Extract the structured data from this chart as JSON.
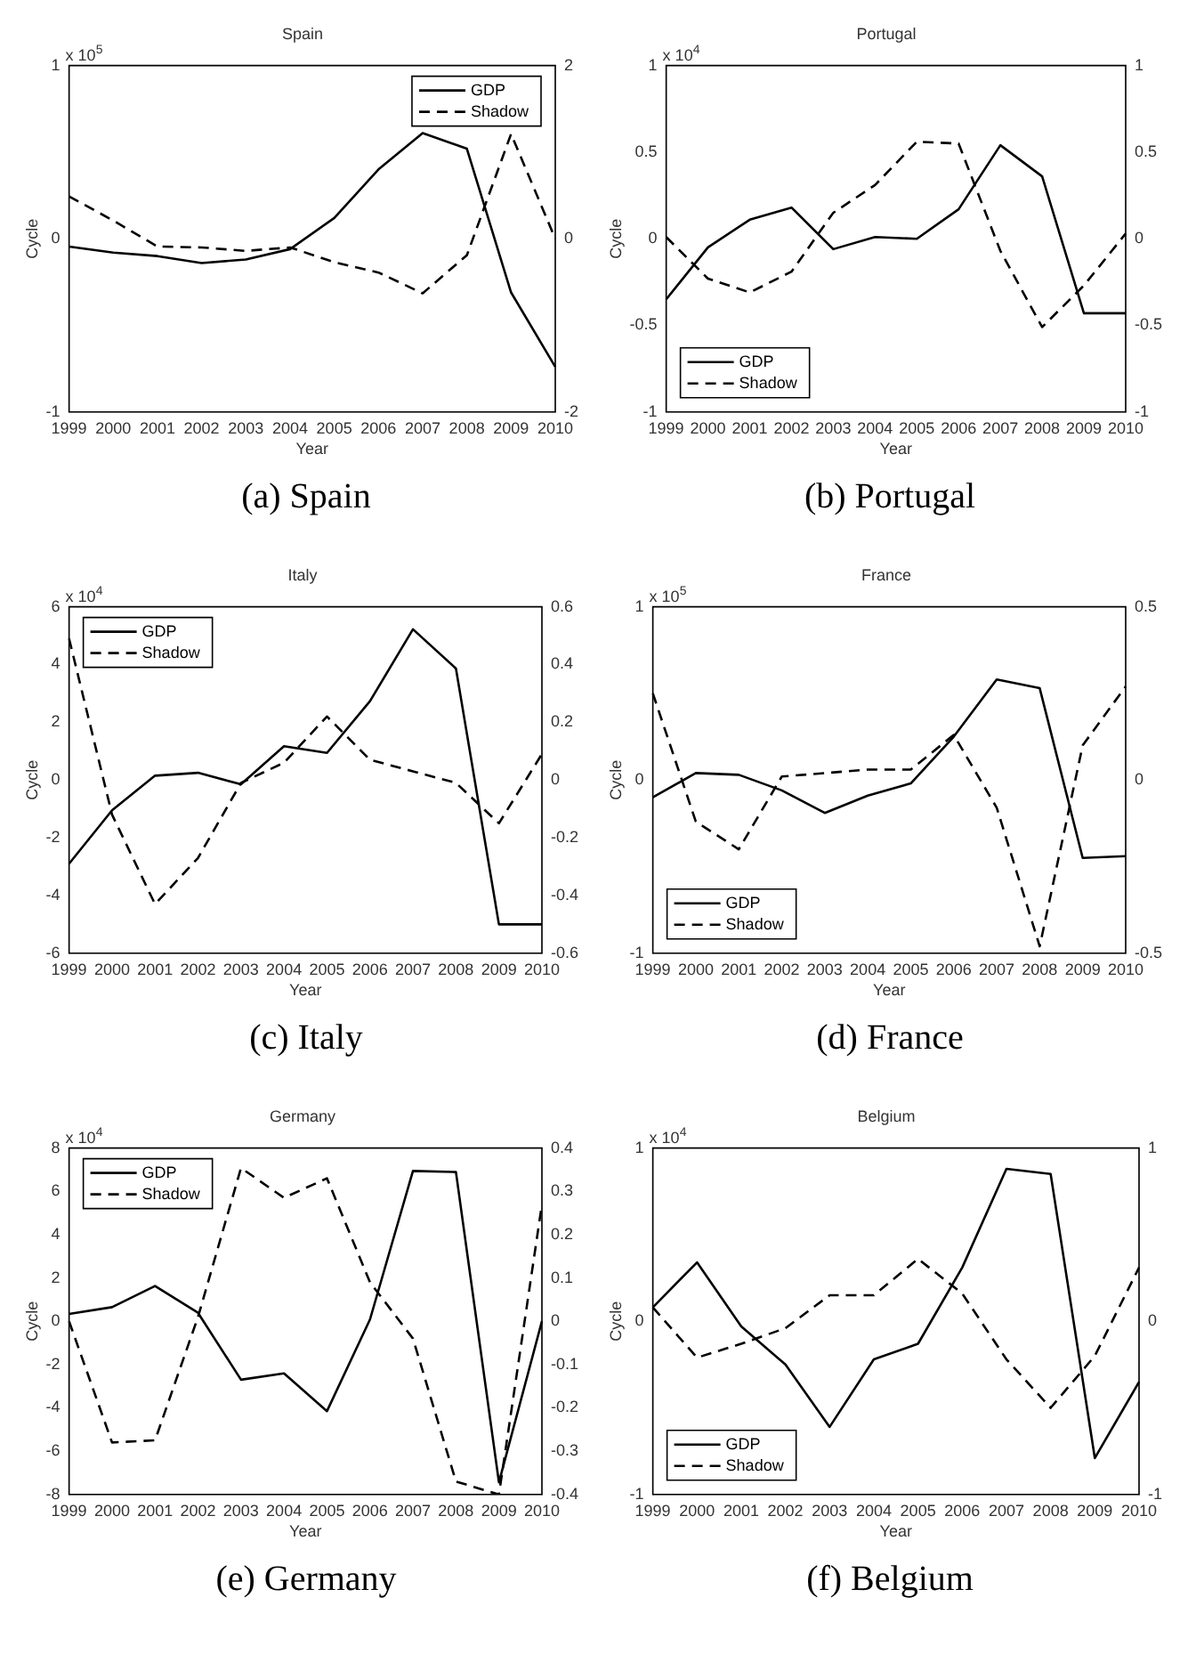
{
  "chart_data": [
    {
      "type": "line",
      "title": "Spain",
      "xlabel": "Year",
      "ylabel": "Cycle",
      "categories": [
        "1999",
        "2000",
        "2001",
        "2002",
        "2003",
        "2004",
        "2005",
        "2006",
        "2007",
        "2008",
        "2009",
        "2010"
      ],
      "ylim": [
        -1,
        1
      ],
      "yticks": [
        -1,
        0,
        1
      ],
      "y2lim": [
        -2,
        2
      ],
      "y2ticks": [
        -2,
        0,
        2
      ],
      "legend": "top right",
      "grid": false,
      "annotations": [
        "x 10$^{5}$",
        "(a) Spain"
      ],
      "series": [
        {
          "name": "GDP",
          "color": "#000000",
          "line_style": "solid",
          "values": [
            -0.045,
            -0.08,
            -0.1,
            -0.14,
            -0.12,
            -0.06,
            0.12,
            0.4,
            0.61,
            0.52,
            -0.31,
            -0.74
          ]
        },
        {
          "name": "Shadow",
          "color": "#000000",
          "line_style": "dashed",
          "axis": "y2",
          "values": [
            0.49,
            0.21,
            -0.09,
            -0.1,
            -0.14,
            -0.1,
            -0.27,
            -0.39,
            -0.63,
            -0.19,
            1.21,
            0
          ]
        }
      ]
    },
    {
      "type": "line",
      "title": "Portugal",
      "xlabel": "Year",
      "ylabel": "Cycle",
      "categories": [
        "1999",
        "2000",
        "2001",
        "2002",
        "2003",
        "2004",
        "2005",
        "2006",
        "2007",
        "2008",
        "2009",
        "2010"
      ],
      "ylim": [
        -1,
        1
      ],
      "yticks": [
        -1,
        -0.5,
        0,
        0.5,
        1
      ],
      "y2lim": [
        -1,
        1
      ],
      "y2ticks": [
        -1,
        -0.5,
        0,
        0.5,
        1
      ],
      "legend": "bottom left",
      "grid": false,
      "annotations": [
        "x 10$^{4}$",
        "(b) Portugal"
      ],
      "series": [
        {
          "name": "GDP",
          "color": "#000000",
          "line_style": "solid",
          "values": [
            -0.35,
            -0.05,
            0.11,
            0.18,
            -0.06,
            0.01,
            0,
            0.17,
            0.54,
            0.36,
            -0.43,
            -0.43
          ]
        },
        {
          "name": "Shadow",
          "color": "#000000",
          "line_style": "dashed",
          "axis": "y2",
          "values": [
            0.01,
            -0.23,
            -0.31,
            -0.19,
            0.15,
            0.31,
            0.56,
            0.55,
            -0.07,
            -0.51,
            -0.27,
            0.03
          ]
        }
      ]
    },
    {
      "type": "line",
      "title": "Italy",
      "xlabel": "Year",
      "ylabel": "Cycle",
      "categories": [
        "1999",
        "2000",
        "2001",
        "2002",
        "2003",
        "2004",
        "2005",
        "2006",
        "2007",
        "2008",
        "2009",
        "2010"
      ],
      "ylim": [
        -6,
        6
      ],
      "yticks": [
        -6,
        -4,
        -2,
        0,
        2,
        4,
        6
      ],
      "y2lim": [
        -0.6,
        0.6
      ],
      "y2ticks": [
        -0.6,
        -0.4,
        -0.2,
        0,
        0.2,
        0.4,
        0.6
      ],
      "legend": "top left",
      "grid": false,
      "annotations": [
        "x 10$^{4}$",
        "(c) Italy"
      ],
      "series": [
        {
          "name": "GDP",
          "color": "#000000",
          "line_style": "solid",
          "values": [
            -2.9,
            -1.05,
            0.15,
            0.25,
            -0.15,
            1.17,
            0.94,
            2.73,
            5.22,
            3.86,
            -5,
            -5
          ]
        },
        {
          "name": "Shadow",
          "color": "#000000",
          "line_style": "dashed",
          "axis": "y2",
          "values": [
            0.49,
            -0.12,
            -0.43,
            -0.27,
            -0.01,
            0.06,
            0.22,
            0.07,
            0.03,
            -0.01,
            -0.15,
            0.09
          ]
        }
      ]
    },
    {
      "type": "line",
      "title": "France",
      "xlabel": "Year",
      "ylabel": "Cycle",
      "categories": [
        "1999",
        "2000",
        "2001",
        "2002",
        "2003",
        "2004",
        "2005",
        "2006",
        "2007",
        "2008",
        "2009",
        "2010"
      ],
      "ylim": [
        -1,
        1
      ],
      "yticks": [
        -1,
        0,
        1
      ],
      "y2lim": [
        -0.5,
        0.5
      ],
      "y2ticks": [
        -0.5,
        0,
        0.5
      ],
      "legend": "bottom left",
      "grid": false,
      "annotations": [
        "x 10$^{5}$",
        "(d) France"
      ],
      "series": [
        {
          "name": "GDP",
          "color": "#000000",
          "line_style": "solid",
          "values": [
            -0.1,
            0.04,
            0.03,
            -0.06,
            -0.19,
            -0.09,
            -0.02,
            0.25,
            0.58,
            0.53,
            -0.45,
            -0.44
          ]
        },
        {
          "name": "Shadow",
          "color": "#000000",
          "line_style": "dashed",
          "axis": "y2",
          "values": [
            0.25,
            -0.12,
            -0.2,
            0.01,
            0.02,
            0.03,
            0.03,
            0.13,
            -0.08,
            -0.48,
            0.1,
            0.27
          ]
        }
      ]
    },
    {
      "type": "line",
      "title": "Germany",
      "xlabel": "Year",
      "ylabel": "Cycle",
      "categories": [
        "1999",
        "2000",
        "2001",
        "2002",
        "2003",
        "2004",
        "2005",
        "2006",
        "2007",
        "2008",
        "2009",
        "2010"
      ],
      "ylim": [
        -8,
        8
      ],
      "yticks": [
        -8,
        -6,
        -4,
        -2,
        0,
        2,
        4,
        6,
        8
      ],
      "y2lim": [
        -0.4,
        0.4
      ],
      "y2ticks": [
        -0.4,
        -0.3,
        -0.2,
        -0.1,
        0,
        0.1,
        0.2,
        0.3,
        0.4
      ],
      "legend": "top left",
      "grid": false,
      "annotations": [
        "x 10$^{4}$",
        "(e) Germany"
      ],
      "series": [
        {
          "name": "GDP",
          "color": "#000000",
          "line_style": "solid",
          "values": [
            0.34,
            0.65,
            1.63,
            0.39,
            -2.7,
            -2.41,
            -4.15,
            0.08,
            6.94,
            6.89,
            -7.44,
            0
          ]
        },
        {
          "name": "Shadow",
          "color": "#000000",
          "line_style": "dashed",
          "axis": "y2",
          "values": [
            0,
            -0.28,
            -0.275,
            0.01,
            0.354,
            0.285,
            0.33,
            0.09,
            -0.04,
            -0.37,
            -0.4,
            0.27
          ]
        }
      ]
    },
    {
      "type": "line",
      "title": "Belgium",
      "xlabel": "Year",
      "ylabel": "Cycle",
      "categories": [
        "1999",
        "2000",
        "2001",
        "2002",
        "2003",
        "2004",
        "2005",
        "2006",
        "2007",
        "2008",
        "2009",
        "2010"
      ],
      "ylim": [
        -1,
        1
      ],
      "yticks": [
        -1,
        0,
        1
      ],
      "y2lim": [
        -1,
        1
      ],
      "y2ticks": [
        -1,
        0,
        1
      ],
      "legend": "bottom left",
      "grid": false,
      "annotations": [
        "x 10$^{4}$",
        "(f) Belgium"
      ],
      "series": [
        {
          "name": "GDP",
          "color": "#000000",
          "line_style": "solid",
          "values": [
            0.08,
            0.34,
            -0.03,
            -0.25,
            -0.61,
            -0.22,
            -0.13,
            0.31,
            0.88,
            0.85,
            -0.79,
            -0.35
          ]
        },
        {
          "name": "Shadow",
          "color": "#000000",
          "line_style": "dashed",
          "axis": "y2",
          "values": [
            0.08,
            -0.21,
            -0.13,
            -0.04,
            0.15,
            0.15,
            0.36,
            0.16,
            -0.22,
            -0.5,
            -0.2,
            0.31
          ]
        }
      ]
    }
  ]
}
